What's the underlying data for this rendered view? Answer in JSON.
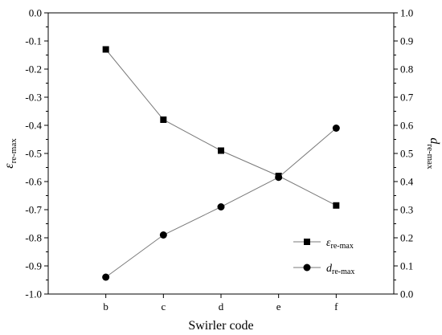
{
  "chart_data": {
    "type": "line",
    "categories": [
      "b",
      "c",
      "d",
      "e",
      "f"
    ],
    "xlabel": "Swirler code",
    "ylabel_left": {
      "symbol": "ε",
      "sub": "re-max"
    },
    "ylabel_right": {
      "symbol": "d",
      "sub": "re-max"
    },
    "ylim_left": [
      -1.0,
      0.0
    ],
    "ylim_right": [
      0.0,
      1.0
    ],
    "yticks_left": [
      "0.0",
      "-0.1",
      "-0.2",
      "-0.3",
      "-0.4",
      "-0.5",
      "-0.6",
      "-0.7",
      "-0.8",
      "-0.9",
      "-1.0"
    ],
    "yticks_right": [
      "1.0",
      "0.9",
      "0.8",
      "0.7",
      "0.6",
      "0.5",
      "0.4",
      "0.3",
      "0.2",
      "0.1",
      "0.0"
    ],
    "series": [
      {
        "name": "ε re-max",
        "symbol": "ε",
        "sub": "re-max",
        "axis": "left",
        "marker": "square",
        "values": [
          -0.13,
          -0.38,
          -0.49,
          -0.58,
          -0.685
        ]
      },
      {
        "name": "d re-max",
        "symbol": "d",
        "sub": "re-max",
        "axis": "right",
        "marker": "circle",
        "values": [
          0.06,
          0.21,
          0.31,
          0.415,
          0.59
        ]
      }
    ],
    "legend_position": "bottom-right",
    "grid": false,
    "colors": {
      "line": "#7a7a7a",
      "marker": "#000000",
      "axis": "#000000"
    }
  }
}
